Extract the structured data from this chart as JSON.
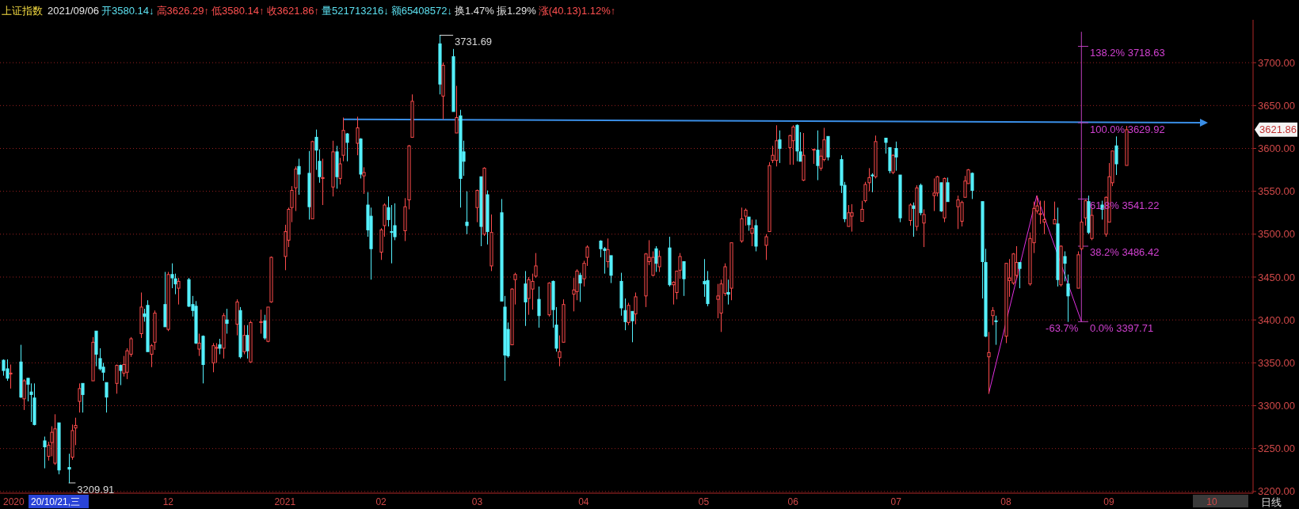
{
  "chart_data": {
    "type": "candlestick",
    "title": "上证指数",
    "subtitle": "2021/09/06 开3580.14↓ 高3626.29↑ 低3580.14↑ 收3621.86↑ 量521713216↓ 额65408572↓ 换1.47% 振1.29% 涨(40.13)1.12%↑",
    "x": [
      "2020-10-14",
      "2020-10-15",
      "2020-10-16",
      "2020-10-19",
      "2020-10-20",
      "2020-10-21",
      "2020-10-22",
      "2020-10-23",
      "2020-10-26",
      "2020-10-27",
      "2020-10-28",
      "2020-10-29",
      "2020-10-30",
      "2020-11-02",
      "2020-11-03",
      "2020-11-04",
      "2020-11-05",
      "2020-11-06",
      "2020-11-09",
      "2020-11-10",
      "2020-11-11",
      "2020-11-12",
      "2020-11-13",
      "2020-11-16",
      "2020-11-17",
      "2020-11-18",
      "2020-11-19",
      "2020-11-20",
      "2020-11-23",
      "2020-11-24",
      "2020-11-25",
      "2020-11-26",
      "2020-11-27",
      "2020-11-30",
      "2020-12-01",
      "2020-12-02",
      "2020-12-03",
      "2020-12-04",
      "2020-12-07",
      "2020-12-08",
      "2020-12-09",
      "2020-12-10",
      "2020-12-11",
      "2020-12-14",
      "2020-12-15",
      "2020-12-16",
      "2020-12-17",
      "2020-12-18",
      "2020-12-21",
      "2020-12-22",
      "2020-12-23",
      "2020-12-24",
      "2020-12-25",
      "2020-12-28",
      "2020-12-29",
      "2020-12-30",
      "2020-12-31",
      "2021-01-04",
      "2021-01-05",
      "2021-01-06",
      "2021-01-07",
      "2021-01-08",
      "2021-01-11",
      "2021-01-12",
      "2021-01-13",
      "2021-01-14",
      "2021-01-15",
      "2021-01-18",
      "2021-01-19",
      "2021-01-20",
      "2021-01-21",
      "2021-01-22",
      "2021-01-25",
      "2021-01-26",
      "2021-01-27",
      "2021-01-28",
      "2021-01-29",
      "2021-02-01",
      "2021-02-02",
      "2021-02-03",
      "2021-02-04",
      "2021-02-05",
      "2021-02-08",
      "2021-02-09",
      "2021-02-10",
      "2021-02-18",
      "2021-02-19",
      "2021-02-22",
      "2021-02-23",
      "2021-02-24",
      "2021-02-25",
      "2021-02-26",
      "2021-03-01",
      "2021-03-02",
      "2021-03-03",
      "2021-03-04",
      "2021-03-05",
      "2021-03-08",
      "2021-03-09",
      "2021-03-10",
      "2021-03-11",
      "2021-03-12",
      "2021-03-15",
      "2021-03-16",
      "2021-03-17",
      "2021-03-18",
      "2021-03-19",
      "2021-03-22",
      "2021-03-23",
      "2021-03-24",
      "2021-03-25",
      "2021-03-26",
      "2021-03-29",
      "2021-03-30",
      "2021-03-31",
      "2021-04-01",
      "2021-04-02",
      "2021-04-06",
      "2021-04-07",
      "2021-04-08",
      "2021-04-09",
      "2021-04-12",
      "2021-04-13",
      "2021-04-14",
      "2021-04-15",
      "2021-04-16",
      "2021-04-19",
      "2021-04-20",
      "2021-04-21",
      "2021-04-22",
      "2021-04-23",
      "2021-04-26",
      "2021-04-27",
      "2021-04-28",
      "2021-04-29",
      "2021-04-30",
      "2021-05-06",
      "2021-05-07",
      "2021-05-10",
      "2021-05-11",
      "2021-05-12",
      "2021-05-13",
      "2021-05-14",
      "2021-05-17",
      "2021-05-18",
      "2021-05-19",
      "2021-05-20",
      "2021-05-21",
      "2021-05-24",
      "2021-05-25",
      "2021-05-26",
      "2021-05-27",
      "2021-05-28",
      "2021-05-31",
      "2021-06-01",
      "2021-06-02",
      "2021-06-03",
      "2021-06-04",
      "2021-06-07",
      "2021-06-08",
      "2021-06-09",
      "2021-06-10",
      "2021-06-11",
      "2021-06-15",
      "2021-06-16",
      "2021-06-17",
      "2021-06-18",
      "2021-06-21",
      "2021-06-22",
      "2021-06-23",
      "2021-06-24",
      "2021-06-25",
      "2021-06-28",
      "2021-06-29",
      "2021-06-30",
      "2021-07-01",
      "2021-07-02",
      "2021-07-05",
      "2021-07-06",
      "2021-07-07",
      "2021-07-08",
      "2021-07-09",
      "2021-07-12",
      "2021-07-13",
      "2021-07-14",
      "2021-07-15",
      "2021-07-16",
      "2021-07-19",
      "2021-07-20",
      "2021-07-21",
      "2021-07-22",
      "2021-07-23",
      "2021-07-26",
      "2021-07-27",
      "2021-07-28",
      "2021-07-29",
      "2021-07-30",
      "2021-08-02",
      "2021-08-03",
      "2021-08-04",
      "2021-08-05",
      "2021-08-06",
      "2021-08-09",
      "2021-08-10",
      "2021-08-11",
      "2021-08-12",
      "2021-08-13",
      "2021-08-16",
      "2021-08-17",
      "2021-08-18",
      "2021-08-19",
      "2021-08-20",
      "2021-08-23",
      "2021-08-24",
      "2021-08-25",
      "2021-08-26",
      "2021-08-27",
      "2021-08-30",
      "2021-08-31",
      "2021-09-01",
      "2021-09-02",
      "2021-09-03",
      "2021-09-06"
    ],
    "ohlc": [
      [
        3353,
        3354,
        3335,
        3341
      ],
      [
        3343,
        3354,
        3329,
        3332
      ],
      [
        3337,
        3348,
        3320,
        3338
      ],
      [
        3351,
        3371,
        3309,
        3310
      ],
      [
        3308,
        3331,
        3295,
        3329
      ],
      [
        3332,
        3332,
        3305,
        3325
      ],
      [
        3316,
        3326,
        3281,
        3313
      ],
      [
        3309,
        3326,
        3277,
        3278
      ],
      [
        3259,
        3264,
        3227,
        3252
      ],
      [
        3241,
        3258,
        3236,
        3254
      ],
      [
        3257,
        3276,
        3241,
        3269
      ],
      [
        3233,
        3290,
        3231,
        3273
      ],
      [
        3280,
        3280,
        3220,
        3225
      ],
      [
        3228,
        3244,
        3209.91,
        3226
      ],
      [
        3240,
        3278,
        3237,
        3271
      ],
      [
        3274,
        3286,
        3254,
        3277
      ],
      [
        3305,
        3326,
        3292,
        3320
      ],
      [
        3326,
        3326,
        3292,
        3313
      ],
      [
        3329,
        3380,
        3329,
        3374
      ],
      [
        3387,
        3387,
        3346,
        3360
      ],
      [
        3355,
        3367,
        3341,
        3343
      ],
      [
        3345,
        3350,
        3329,
        3339
      ],
      [
        3327,
        3327,
        3292,
        3310
      ],
      [
        3326,
        3348,
        3314,
        3347
      ],
      [
        3347,
        3348,
        3324,
        3341
      ],
      [
        3338,
        3358,
        3334,
        3348
      ],
      [
        3339,
        3367,
        3331,
        3364
      ],
      [
        3360,
        3380,
        3357,
        3378
      ],
      [
        3384,
        3432,
        3379,
        3415
      ],
      [
        3407,
        3413,
        3398,
        3404
      ],
      [
        3417,
        3423,
        3363,
        3363
      ],
      [
        3360,
        3372,
        3345,
        3370
      ],
      [
        3374,
        3411,
        3365,
        3408
      ],
      [
        3418,
        3456,
        3392,
        3392
      ],
      [
        3389,
        3456,
        3387,
        3453
      ],
      [
        3453,
        3466,
        3437,
        3449
      ],
      [
        3448,
        3454,
        3430,
        3442
      ],
      [
        3437,
        3449,
        3418,
        3445
      ],
      [
        3447,
        3449,
        3415,
        3416
      ],
      [
        3418,
        3428,
        3404,
        3411
      ],
      [
        3416,
        3422,
        3372,
        3373
      ],
      [
        3366,
        3384,
        3358,
        3373
      ],
      [
        3381,
        3382,
        3326,
        3348
      ],
      [
        3350,
        3373,
        3339,
        3370
      ],
      [
        3367,
        3373,
        3350,
        3368
      ],
      [
        3371,
        3378,
        3360,
        3367
      ],
      [
        3367,
        3408,
        3355,
        3405
      ],
      [
        3400,
        3413,
        3384,
        3396
      ],
      [
        3395,
        3424,
        3382,
        3421
      ],
      [
        3411,
        3415,
        3355,
        3357
      ],
      [
        3363,
        3394,
        3360,
        3382
      ],
      [
        3382,
        3394,
        3355,
        3364
      ],
      [
        3351,
        3399,
        3350,
        3397
      ],
      [
        3397,
        3412,
        3384,
        3398
      ],
      [
        3399,
        3406,
        3377,
        3379
      ],
      [
        3375,
        3415,
        3374,
        3415
      ],
      [
        3421,
        3474,
        3420,
        3473
      ],
      [
        3474,
        3511,
        3458,
        3503
      ],
      [
        3493,
        3531,
        3485,
        3529
      ],
      [
        3531,
        3556,
        3514,
        3551
      ],
      [
        3554,
        3579,
        3527,
        3576
      ],
      [
        3579,
        3588,
        3546,
        3570
      ],
      [
        3571,
        3597,
        3517,
        3532
      ],
      [
        3518,
        3609,
        3518,
        3608
      ],
      [
        3613,
        3622,
        3575,
        3598
      ],
      [
        3585,
        3599,
        3560,
        3567
      ],
      [
        3565,
        3588,
        3534,
        3566
      ],
      [
        3555,
        3609,
        3544,
        3596
      ],
      [
        3596,
        3603,
        3553,
        3567
      ],
      [
        3565,
        3589,
        3558,
        3582
      ],
      [
        3592,
        3636,
        3585,
        3621
      ],
      [
        3617,
        3618,
        3585,
        3607
      ],
      [
        3606,
        3637,
        3592,
        3624
      ],
      [
        3611,
        3612,
        3565,
        3570
      ],
      [
        3568,
        3578,
        3547,
        3572
      ],
      [
        3534,
        3549,
        3497,
        3505
      ],
      [
        3521,
        3531,
        3447,
        3483
      ],
      [
        3479,
        3507,
        3470,
        3505
      ],
      [
        3510,
        3536,
        3497,
        3534
      ],
      [
        3531,
        3544,
        3509,
        3517
      ],
      [
        3503,
        3534,
        3466,
        3502
      ],
      [
        3510,
        3536,
        3493,
        3497
      ],
      [
        3504,
        3542,
        3492,
        3532
      ],
      [
        3540,
        3604,
        3529,
        3603
      ],
      [
        3613,
        3663,
        3613,
        3655
      ],
      [
        3722,
        3731.69,
        3663,
        3675
      ],
      [
        3661,
        3700,
        3634,
        3697
      ],
      [
        3707,
        3716,
        3643,
        3643
      ],
      [
        3618,
        3673,
        3618,
        3636
      ],
      [
        3638,
        3645,
        3531,
        3565
      ],
      [
        3596,
        3609,
        3568,
        3585
      ],
      [
        3514,
        3550,
        3500,
        3510
      ],
      [
        3531,
        3552,
        3514,
        3551
      ],
      [
        3567,
        3567,
        3486,
        3509
      ],
      [
        3500,
        3578,
        3498,
        3577
      ],
      [
        3546,
        3551,
        3488,
        3503
      ],
      [
        3463,
        3523,
        3457,
        3502
      ],
      [
        3525,
        3541,
        3422,
        3422
      ],
      [
        3415,
        3428,
        3329,
        3359
      ],
      [
        3389,
        3397,
        3356,
        3358
      ],
      [
        3371,
        3437,
        3371,
        3436
      ],
      [
        3447,
        3455,
        3418,
        3453
      ],
      [
        3442,
        3457,
        3393,
        3421
      ],
      [
        3425,
        3450,
        3406,
        3447
      ],
      [
        3436,
        3454,
        3412,
        3445
      ],
      [
        3451,
        3478,
        3449,
        3463
      ],
      [
        3424,
        3439,
        3391,
        3405
      ],
      [
        3406,
        3444,
        3404,
        3443
      ],
      [
        3445,
        3446,
        3391,
        3412
      ],
      [
        3394,
        3415,
        3363,
        3367
      ],
      [
        3356,
        3382,
        3346,
        3363
      ],
      [
        3374,
        3424,
        3374,
        3418
      ],
      [
        3430,
        3449,
        3410,
        3435
      ],
      [
        3433,
        3459,
        3423,
        3457
      ],
      [
        3452,
        3455,
        3421,
        3443
      ],
      [
        3448,
        3469,
        3439,
        3466
      ],
      [
        3473,
        3487,
        3463,
        3485
      ],
      [
        3492,
        3493,
        3473,
        3483
      ],
      [
        3483,
        3485,
        3454,
        3481
      ],
      [
        3468,
        3495,
        3461,
        3482
      ],
      [
        3475,
        3475,
        3443,
        3452
      ],
      [
        3445,
        3455,
        3405,
        3414
      ],
      [
        3411,
        3425,
        3388,
        3398
      ],
      [
        3397,
        3420,
        3394,
        3417
      ],
      [
        3410,
        3410,
        3374,
        3399
      ],
      [
        3407,
        3432,
        3395,
        3427
      ],
      [
        3428,
        3478,
        3415,
        3477
      ],
      [
        3468,
        3493,
        3464,
        3473
      ],
      [
        3452,
        3480,
        3451,
        3473
      ],
      [
        3483,
        3486,
        3456,
        3466
      ],
      [
        3462,
        3481,
        3456,
        3474
      ],
      [
        3484,
        3497,
        3439,
        3441
      ],
      [
        3441,
        3445,
        3418,
        3444
      ],
      [
        3432,
        3457,
        3424,
        3457
      ],
      [
        3458,
        3478,
        3448,
        3474
      ],
      [
        3468,
        3468,
        3428,
        3448
      ],
      [
        3445,
        3471,
        3427,
        3442
      ],
      [
        3446,
        3457,
        3416,
        3419
      ],
      [
        3424,
        3442,
        3402,
        3428
      ],
      [
        3408,
        3447,
        3386,
        3442
      ],
      [
        3431,
        3466,
        3428,
        3462
      ],
      [
        3432,
        3447,
        3418,
        3430
      ],
      [
        3437,
        3490,
        3423,
        3490
      ],
      [
        3492,
        3531,
        3490,
        3518
      ],
      [
        3521,
        3530,
        3510,
        3528
      ],
      [
        3520,
        3520,
        3504,
        3511
      ],
      [
        3501,
        3517,
        3486,
        3507
      ],
      [
        3510,
        3517,
        3480,
        3486
      ],
      [
        3487,
        3500,
        3470,
        3497
      ],
      [
        3503,
        3584,
        3503,
        3580
      ],
      [
        3586,
        3603,
        3583,
        3592
      ],
      [
        3586,
        3627,
        3579,
        3609
      ],
      [
        3610,
        3621,
        3583,
        3600
      ],
      [
        3601,
        3616,
        3581,
        3615
      ],
      [
        3609,
        3627,
        3581,
        3625
      ],
      [
        3627,
        3628,
        3585,
        3597
      ],
      [
        3596,
        3619,
        3585,
        3585
      ],
      [
        3563,
        3618,
        3562,
        3592
      ],
      [
        3598,
        3599,
        3582,
        3599
      ],
      [
        3598,
        3621,
        3563,
        3580
      ],
      [
        3577,
        3599,
        3574,
        3591
      ],
      [
        3587,
        3624,
        3585,
        3610
      ],
      [
        3614,
        3614,
        3586,
        3590
      ],
      [
        3587,
        3592,
        3548,
        3557
      ],
      [
        3557,
        3561,
        3514,
        3518
      ],
      [
        3509,
        3534,
        3509,
        3525
      ],
      [
        3521,
        3535,
        3503,
        3525
      ],
      [
        3515,
        3539,
        3515,
        3529
      ],
      [
        3539,
        3561,
        3537,
        3558
      ],
      [
        3560,
        3577,
        3550,
        3566
      ],
      [
        3569,
        3571,
        3549,
        3568
      ],
      [
        3567,
        3615,
        3565,
        3608
      ],
      [
        3612,
        3612,
        3594,
        3607
      ],
      [
        3601,
        3601,
        3571,
        3574
      ],
      [
        3572,
        3593,
        3570,
        3592
      ],
      [
        3600,
        3608,
        3574,
        3590
      ],
      [
        3569,
        3569,
        3514,
        3519
      ],
      [
        3516,
        3536,
        3510,
        3534
      ],
      [
        3533,
        3537,
        3497,
        3530
      ],
      [
        3509,
        3557,
        3504,
        3554
      ],
      [
        3557,
        3559,
        3522,
        3525
      ],
      [
        3513,
        3529,
        3485,
        3523
      ],
      [
        3545,
        3565,
        3527,
        3548
      ],
      [
        3548,
        3568,
        3544,
        3567
      ],
      [
        3560,
        3560,
        3526,
        3527
      ],
      [
        3519,
        3566,
        3514,
        3565
      ],
      [
        3560,
        3566,
        3538,
        3538
      ],
      [
        3532,
        3545,
        3506,
        3540
      ],
      [
        3515,
        3539,
        3509,
        3537
      ],
      [
        3543,
        3568,
        3543,
        3562
      ],
      [
        3559,
        3576,
        3559,
        3575
      ],
      [
        3571,
        3572,
        3541,
        3551
      ],
      [
        3538,
        3538,
        3425,
        3468
      ],
      [
        3467,
        3483,
        3380,
        3381
      ],
      [
        3357,
        3386,
        3314,
        3362
      ],
      [
        3405,
        3415,
        3394,
        3411
      ],
      [
        3399,
        3405,
        3371,
        3398
      ],
      [
        3381,
        3466,
        3373,
        3466
      ],
      [
        3446,
        3471,
        3427,
        3449
      ],
      [
        3443,
        3478,
        3441,
        3477
      ],
      [
        3452,
        3486,
        3448,
        3467
      ],
      [
        3467,
        3467,
        3437,
        3460
      ],
      [
        3442,
        3502,
        3440,
        3495
      ],
      [
        3490,
        3538,
        3478,
        3530
      ],
      [
        3527,
        3545,
        3524,
        3533
      ],
      [
        3523,
        3539,
        3512,
        3524
      ],
      [
        3514,
        3539,
        3500,
        3517
      ],
      [
        3512,
        3538,
        3512,
        3517
      ],
      [
        3512,
        3531,
        3439,
        3447
      ],
      [
        3441,
        3487,
        3439,
        3486
      ],
      [
        3474,
        3480,
        3445,
        3466
      ],
      [
        3442,
        3453,
        3397.71,
        3428
      ],
      [
        3437,
        3480,
        3437,
        3476
      ],
      [
        3483,
        3517,
        3481,
        3514
      ],
      [
        3519,
        3540,
        3510,
        3539
      ],
      [
        3538,
        3545,
        3500,
        3502
      ],
      [
        3495,
        3531,
        3493,
        3522
      ],
      [
        3534,
        3539,
        3517,
        3529
      ],
      [
        3500,
        3544,
        3497,
        3543
      ],
      [
        3514,
        3583,
        3514,
        3567
      ],
      [
        3560,
        3597,
        3556,
        3597
      ],
      [
        3603,
        3614,
        3569,
        3582
      ],
      [
        3580.14,
        3626.29,
        3580.14,
        3621.86
      ]
    ],
    "series": [
      {
        "type": "line",
        "color": "#3a8ee6",
        "x": [
          "2021-01-21",
          "2021-09-28"
        ],
        "values": [
          3634,
          3630
        ]
      },
      {
        "type": "line",
        "color": "#e030e0",
        "x": [
          "2021-07-28",
          "2021-08-11",
          "2021-08-24"
        ],
        "values": [
          3314,
          3545,
          3398
        ]
      },
      {
        "type": "line",
        "color": "#c040c0",
        "x": [
          "2021-08-24",
          "2021-08-24"
        ],
        "values": [
          3736,
          3398
        ]
      },
      {
        "type": "line",
        "color": "#c040c0",
        "x": [
          "2021-08-23",
          "2021-08-26"
        ],
        "values": [
          3719,
          3719
        ]
      },
      {
        "type": "line",
        "color": "#c040c0",
        "x": [
          "2021-08-23",
          "2021-08-26"
        ],
        "values": [
          3630,
          3630
        ]
      },
      {
        "type": "line",
        "color": "#c040c0",
        "x": [
          "2021-08-23",
          "2021-08-26"
        ],
        "values": [
          3541,
          3541
        ]
      },
      {
        "type": "line",
        "color": "#c040c0",
        "x": [
          "2021-08-23",
          "2021-08-26"
        ],
        "values": [
          3486,
          3486
        ]
      },
      {
        "type": "line",
        "color": "#c040c0",
        "x": [
          "2021-08-23",
          "2021-08-26"
        ],
        "values": [
          3398,
          3398
        ]
      },
      {
        "type": "line",
        "color": "#d8d8d8",
        "x": [
          "2021-02-18",
          "2021-02-22"
        ],
        "values": [
          3732,
          3732
        ]
      },
      {
        "type": "line",
        "color": "#d8d8d8",
        "x": [
          "2020-11-02",
          "2020-11-04"
        ],
        "values": [
          3210,
          3210
        ]
      }
    ],
    "annotations": [
      {
        "text": "3731.69",
        "x": "2021-02-22",
        "y": 3731.69
      },
      {
        "text": "3209.91",
        "x": "2020-11-04",
        "y": 3209.91
      },
      {
        "text": "138.2% 3718.63",
        "x": "2021-08-26",
        "y": 3718.63
      },
      {
        "text": "100.0% 3629.92",
        "x": "2021-08-26",
        "y": 3629.92
      },
      {
        "text": "61.8% 3541.22",
        "x": "2021-08-26",
        "y": 3541.22
      },
      {
        "text": "38.2% 3486.42",
        "x": "2021-08-26",
        "y": 3486.42
      },
      {
        "text": "0.0% 3397.71",
        "x": "2021-08-26",
        "y": 3397.71
      },
      {
        "text": "-63.7%",
        "x": "2021-08-24",
        "y": 3397.71
      },
      "3621.86",
      "20/10/21,三",
      "日线"
    ],
    "xlim": [
      "2020-10-13",
      "2021-10-13"
    ],
    "xticks": [
      {
        "value": "2020-10-17",
        "label": "2020"
      },
      {
        "value": "2020-12-01",
        "label": "12"
      },
      {
        "value": "2021-01-04",
        "label": "2021"
      },
      {
        "value": "2021-02-01",
        "label": "02"
      },
      {
        "value": "2021-03-01",
        "label": "03"
      },
      {
        "value": "2021-04-01",
        "label": "04"
      },
      {
        "value": "2021-05-06",
        "label": "05"
      },
      {
        "value": "2021-06-01",
        "label": "06"
      },
      {
        "value": "2021-07-01",
        "label": "07"
      },
      {
        "value": "2021-08-02",
        "label": "08"
      },
      {
        "value": "2021-09-01",
        "label": "09"
      },
      {
        "value": "2021-10-01",
        "label": "10"
      }
    ],
    "ylim": [
      3198,
      3750
    ],
    "yticks": [
      {
        "value": 3200,
        "label": "3200.00"
      },
      {
        "value": 3250,
        "label": "3250.00"
      },
      {
        "value": 3300,
        "label": "3300.00"
      },
      {
        "value": 3350,
        "label": "3350.00"
      },
      {
        "value": 3400,
        "label": "3400.00"
      },
      {
        "value": 3450,
        "label": "3450.00"
      },
      {
        "value": 3500,
        "label": "3500.00"
      },
      {
        "value": 3550,
        "label": "3550.00"
      },
      {
        "value": 3600,
        "label": "3600.00"
      },
      {
        "value": 3650,
        "label": "3650.00"
      },
      {
        "value": 3700,
        "label": "3700.00"
      }
    ],
    "grid": "y"
  }
}
